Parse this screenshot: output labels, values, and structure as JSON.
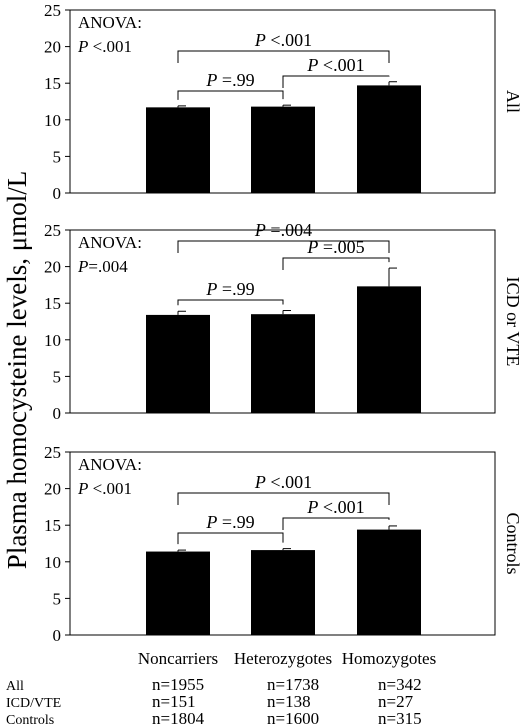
{
  "ylabel": "Plasma homocysteine levels, μmol/L",
  "categories": [
    "Noncarriers",
    "Heterozygotes",
    "Homozygotes"
  ],
  "sample_table": {
    "rows": [
      {
        "label": "All",
        "values": [
          "n=1955",
          "n=1738",
          "n=342"
        ]
      },
      {
        "label": "ICD/VTE",
        "values": [
          "n=151",
          "n=138",
          "n=27"
        ]
      },
      {
        "label": "Controls",
        "values": [
          "n=1804",
          "n=1600",
          "n=315"
        ]
      }
    ]
  },
  "colors": {
    "bar": "#000000",
    "axis": "#000000",
    "background": "#ffffff"
  },
  "chart_data": [
    {
      "type": "bar",
      "panel_label": "All",
      "categories": [
        "Noncarriers",
        "Heterozygotes",
        "Homozygotes"
      ],
      "values": [
        11.7,
        11.8,
        14.7
      ],
      "errors": [
        0.2,
        0.2,
        0.5
      ],
      "ylim": [
        0,
        25
      ],
      "yticks": [
        "0",
        "5",
        "10",
        "15",
        "20",
        "25"
      ],
      "anova": [
        "ANOVA:",
        "P <.001"
      ],
      "comparisons": [
        {
          "label": "P =.99",
          "from": 0,
          "to": 1
        },
        {
          "label": "P <.001",
          "from": 1,
          "to": 2
        },
        {
          "label": "P <.001",
          "from": 0,
          "to": 2
        }
      ]
    },
    {
      "type": "bar",
      "panel_label": "ICD or VTE",
      "categories": [
        "Noncarriers",
        "Heterozygotes",
        "Homozygotes"
      ],
      "values": [
        13.4,
        13.5,
        17.3
      ],
      "errors": [
        0.5,
        0.5,
        2.5
      ],
      "ylim": [
        0,
        25
      ],
      "yticks": [
        "0",
        "5",
        "10",
        "15",
        "20",
        "25"
      ],
      "anova": [
        "ANOVA:",
        "P=.004"
      ],
      "comparisons": [
        {
          "label": "P =.99",
          "from": 0,
          "to": 1
        },
        {
          "label": "P =.005",
          "from": 1,
          "to": 2
        },
        {
          "label": "P =.004",
          "from": 0,
          "to": 2
        }
      ]
    },
    {
      "type": "bar",
      "panel_label": "Controls",
      "categories": [
        "Noncarriers",
        "Heterozygotes",
        "Homozygotes"
      ],
      "values": [
        11.4,
        11.6,
        14.4
      ],
      "errors": [
        0.2,
        0.2,
        0.5
      ],
      "ylim": [
        0,
        25
      ],
      "yticks": [
        "0",
        "5",
        "10",
        "15",
        "20",
        "25"
      ],
      "anova": [
        "ANOVA:",
        "P <.001"
      ],
      "comparisons": [
        {
          "label": "P =.99",
          "from": 0,
          "to": 1
        },
        {
          "label": "P <.001",
          "from": 1,
          "to": 2
        },
        {
          "label": "P <.001",
          "from": 0,
          "to": 2
        }
      ]
    }
  ]
}
